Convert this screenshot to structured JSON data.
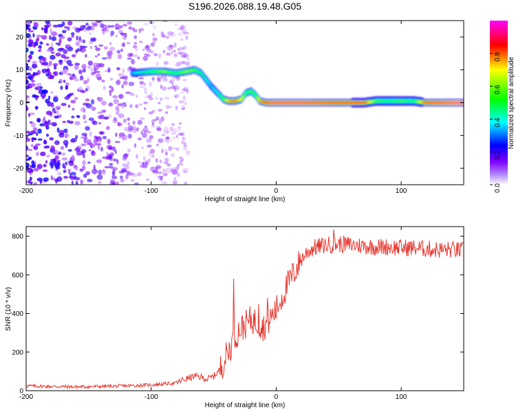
{
  "figure": {
    "title": "S196.2026.088.19.48.G05"
  },
  "chart_data": [
    {
      "type": "heatmap",
      "panel": "spectrogram",
      "xlabel": "Height of straight line (km)",
      "ylabel": "Frequency (Hz)",
      "xlim": [
        -200,
        150
      ],
      "ylim": [
        -25,
        25
      ],
      "x_ticks": [
        -200,
        -100,
        0,
        100
      ],
      "x_tick_labels": [
        "-200",
        "-100",
        "0",
        "100"
      ],
      "y_ticks": [
        20,
        10,
        0,
        -10,
        -20
      ],
      "y_tick_labels": [
        "20",
        "10",
        "0",
        "-10",
        "-20"
      ],
      "colorbar": {
        "label": "Normalized spectral amplitude",
        "range": [
          0,
          1
        ],
        "ticks": [
          0.0,
          0.2,
          0.4,
          0.6,
          0.8
        ],
        "tick_labels": [
          "0.0",
          "0.2",
          "0.4",
          "0.6",
          "0.8"
        ],
        "colormap": [
          "#ffffff",
          "#7f00ff",
          "#0000ff",
          "#00ffff",
          "#00ff00",
          "#ffff00",
          "#ff0000",
          "#ff00ff"
        ]
      },
      "ridge": {
        "x": [
          -115,
          -100,
          -90,
          -80,
          -72,
          -65,
          -60,
          -52,
          -47,
          -42,
          -38,
          -33,
          -28,
          -24,
          -20,
          -17,
          -13,
          -8,
          0,
          20,
          50,
          70,
          80,
          90,
          100,
          110,
          120,
          150
        ],
        "freq": [
          9.0,
          9.5,
          9.5,
          9.0,
          9.5,
          10.0,
          9.0,
          5.0,
          3.0,
          1.0,
          0.5,
          0.5,
          1.0,
          3.0,
          3.5,
          2.5,
          0.5,
          0.0,
          0.0,
          0.0,
          0.0,
          0.0,
          0.5,
          0.5,
          0.5,
          0.5,
          0.0,
          0.0
        ],
        "amplitude": [
          0.35,
          0.5,
          0.6,
          0.5,
          0.6,
          0.55,
          0.45,
          0.35,
          0.4,
          0.55,
          0.75,
          0.8,
          0.7,
          0.5,
          0.55,
          0.5,
          0.75,
          0.85,
          0.9,
          0.9,
          0.85,
          0.85,
          0.55,
          0.5,
          0.55,
          0.5,
          0.85,
          0.95
        ]
      },
      "noise_region": {
        "x": [
          -200,
          -80
        ],
        "freq": [
          -25,
          25
        ],
        "amplitude": [
          0.0,
          0.3
        ]
      }
    },
    {
      "type": "line",
      "panel": "snr",
      "xlabel": "Height of straight line (km)",
      "ylabel": "SNR (10 * v/v)",
      "xlim": [
        -200,
        150
      ],
      "ylim": [
        0,
        850
      ],
      "x_ticks": [
        -200,
        -100,
        0,
        100
      ],
      "x_tick_labels": [
        "-200",
        "-100",
        "0",
        "100"
      ],
      "y_ticks": [
        0,
        200,
        400,
        600,
        800
      ],
      "y_tick_labels": [
        "0",
        "200",
        "400",
        "600",
        "800"
      ],
      "color": "#e8322b",
      "series": [
        {
          "name": "SNR",
          "x": [
            -200,
            -180,
            -160,
            -140,
            -120,
            -100,
            -90,
            -80,
            -75,
            -70,
            -65,
            -60,
            -55,
            -50,
            -45,
            -40,
            -35,
            -30,
            -25,
            -20,
            -15,
            -10,
            -5,
            0,
            5,
            10,
            15,
            20,
            25,
            30,
            40,
            50,
            60,
            70,
            80,
            90,
            100,
            110,
            120,
            130,
            140,
            150
          ],
          "y": [
            25,
            22,
            20,
            22,
            25,
            30,
            35,
            40,
            55,
            65,
            75,
            70,
            60,
            75,
            110,
            180,
            250,
            310,
            340,
            370,
            350,
            330,
            370,
            420,
            490,
            560,
            620,
            680,
            720,
            740,
            755,
            760,
            755,
            750,
            745,
            745,
            740,
            740,
            735,
            730,
            730,
            725
          ],
          "spikes": [
            {
              "x": -34,
              "y": 580
            },
            {
              "x": -14,
              "y": 450
            },
            {
              "x": -7,
              "y": 480
            },
            {
              "x": 46,
              "y": 835
            }
          ]
        }
      ]
    }
  ]
}
